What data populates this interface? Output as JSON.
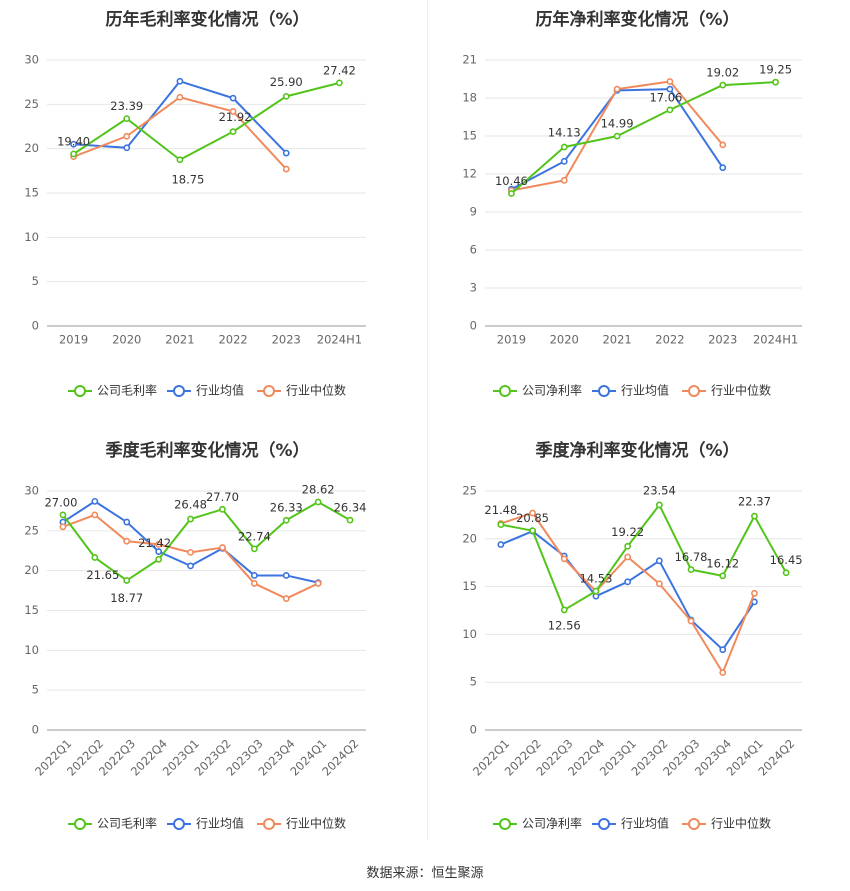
{
  "source": "数据来源：恒生聚源",
  "colors": {
    "company": "#52c41a",
    "avg": "#3b74e0",
    "median": "#f08a5d"
  },
  "chart_data": [
    {
      "type": "line",
      "title": "历年毛利率变化情况（%）",
      "categories": [
        "2019",
        "2020",
        "2021",
        "2022",
        "2023",
        "2024H1"
      ],
      "ylim": [
        0,
        30
      ],
      "yticks": [
        0,
        5,
        10,
        15,
        20,
        25,
        30
      ],
      "grid": true,
      "legend_position": "bottom",
      "series": [
        {
          "name": "公司毛利率",
          "values": [
            19.4,
            23.39,
            18.75,
            21.92,
            25.9,
            27.42
          ],
          "labels": [
            "19.40",
            "23.39",
            "18.75",
            "21.92",
            "25.90",
            "27.42"
          ]
        },
        {
          "name": "行业均值",
          "values": [
            20.5,
            20.1,
            27.6,
            25.7,
            19.5,
            null
          ]
        },
        {
          "name": "行业中位数",
          "values": [
            19.1,
            21.4,
            25.8,
            24.2,
            17.7,
            null
          ]
        }
      ]
    },
    {
      "type": "line",
      "title": "历年净利率变化情况（%）",
      "categories": [
        "2019",
        "2020",
        "2021",
        "2022",
        "2023",
        "2024H1"
      ],
      "ylim": [
        0,
        21
      ],
      "yticks": [
        0,
        3,
        6,
        9,
        12,
        15,
        18,
        21
      ],
      "grid": true,
      "legend_position": "bottom",
      "series": [
        {
          "name": "公司净利率",
          "values": [
            10.46,
            14.13,
            14.99,
            17.06,
            19.02,
            19.25
          ],
          "labels": [
            "10.46",
            "14.13",
            "14.99",
            "17.06",
            "19.02",
            "19.25"
          ]
        },
        {
          "name": "行业均值",
          "values": [
            10.8,
            13.0,
            18.6,
            18.7,
            12.5,
            null
          ]
        },
        {
          "name": "行业中位数",
          "values": [
            10.7,
            11.5,
            18.7,
            19.3,
            14.3,
            null
          ]
        }
      ]
    },
    {
      "type": "line",
      "title": "季度毛利率变化情况（%）",
      "categories": [
        "2022Q1",
        "2022Q2",
        "2022Q3",
        "2022Q4",
        "2023Q1",
        "2023Q2",
        "2023Q3",
        "2023Q4",
        "2024Q1",
        "2024Q2"
      ],
      "ylim": [
        0,
        30
      ],
      "yticks": [
        0,
        5,
        10,
        15,
        20,
        25,
        30
      ],
      "grid": true,
      "legend_position": "bottom",
      "series": [
        {
          "name": "公司毛利率",
          "values": [
            27.0,
            21.65,
            18.77,
            21.42,
            26.48,
            27.7,
            22.74,
            26.33,
            28.62,
            26.34
          ],
          "labels": [
            "27.00",
            "21.65",
            "18.77",
            "21.42",
            "26.48",
            "27.70",
            "22.74",
            "26.33",
            "28.62",
            "26.34"
          ]
        },
        {
          "name": "行业均值",
          "values": [
            26.1,
            28.7,
            26.1,
            22.4,
            20.6,
            22.8,
            19.4,
            19.4,
            18.5,
            null
          ]
        },
        {
          "name": "行业中位数",
          "values": [
            25.5,
            27.0,
            23.7,
            23.3,
            22.3,
            22.9,
            18.4,
            16.5,
            18.4,
            null
          ]
        }
      ]
    },
    {
      "type": "line",
      "title": "季度净利率变化情况（%）",
      "categories": [
        "2022Q1",
        "2022Q2",
        "2022Q3",
        "2022Q4",
        "2023Q1",
        "2023Q2",
        "2023Q3",
        "2023Q4",
        "2024Q1",
        "2024Q2"
      ],
      "ylim": [
        0,
        25
      ],
      "yticks": [
        0,
        5,
        10,
        15,
        20,
        25
      ],
      "grid": true,
      "legend_position": "bottom",
      "series": [
        {
          "name": "公司净利率",
          "values": [
            21.48,
            20.85,
            12.56,
            14.53,
            19.22,
            23.54,
            16.78,
            16.12,
            22.37,
            16.45
          ],
          "labels": [
            "21.48",
            "20.85",
            "12.56",
            "14.53",
            "19.22",
            "23.54",
            "16.78",
            "16.12",
            "22.37",
            "16.45"
          ]
        },
        {
          "name": "行业均值",
          "values": [
            19.4,
            20.8,
            18.2,
            14.0,
            15.5,
            17.7,
            11.5,
            8.4,
            13.4,
            null
          ]
        },
        {
          "name": "行业中位数",
          "values": [
            21.6,
            22.7,
            17.9,
            14.5,
            18.1,
            15.3,
            11.4,
            6.0,
            14.3,
            null
          ]
        }
      ]
    }
  ]
}
